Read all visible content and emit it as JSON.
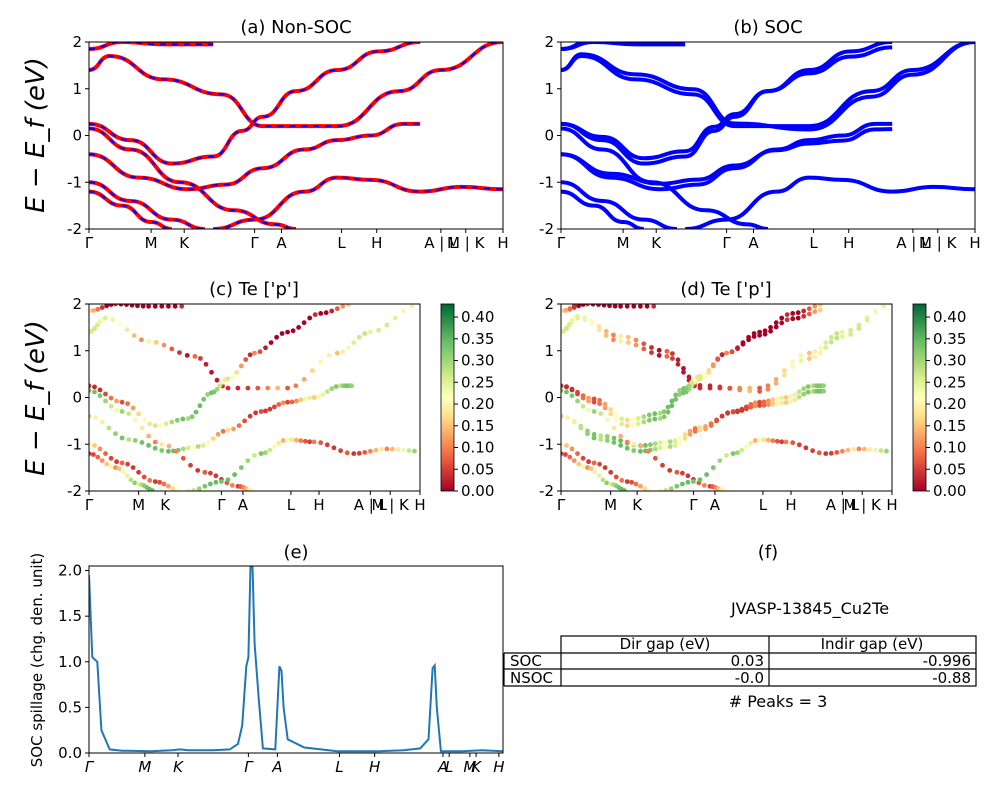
{
  "figure": {
    "panel_a_title": "(a) Non-SOC",
    "panel_b_title": "(b) SOC",
    "panel_c_title": "(c)  Te ['p']",
    "panel_d_title": "(d) Te ['p']",
    "panel_e_title": "(e)",
    "panel_f_title": "(f)",
    "ylabel_energy": "E − E_f (eV)",
    "ylabel_spillage": "SOC spillage (chg. den. unit)"
  },
  "kpath_labels": [
    "Γ",
    "M",
    "K",
    "Γ",
    "A",
    "L",
    "H",
    "A | L",
    "M | K",
    "H"
  ],
  "colors": {
    "nonsoc_red": "#ff0000",
    "soc_blue": "#0000ff",
    "spillage_line": "#1f77b4"
  },
  "chart_data": [
    {
      "type": "line",
      "id": "a",
      "title": "(a) Non-SOC",
      "ylim": [
        -2,
        2
      ],
      "yticks": [
        -2,
        -1,
        0,
        1,
        2
      ],
      "series_note": "red solid and blue dashed bands coincide",
      "bands": [
        [
          [
            0,
            1.4
          ],
          [
            0.05,
            1.7
          ],
          [
            0.18,
            1.2
          ],
          [
            0.32,
            0.88
          ],
          [
            0.42,
            0.2
          ],
          [
            0.6,
            0.2
          ],
          [
            0.75,
            0.95
          ],
          [
            0.85,
            1.4
          ],
          [
            1,
            2
          ]
        ],
        [
          [
            0,
            1.85
          ],
          [
            0.08,
            2
          ],
          [
            0.18,
            1.95
          ],
          [
            0.3,
            1.95
          ]
        ],
        [
          [
            0,
            0.25
          ],
          [
            0.1,
            -0.1
          ],
          [
            0.2,
            -0.6
          ],
          [
            0.3,
            -0.45
          ],
          [
            0.37,
            0.1
          ],
          [
            0.42,
            0.4
          ],
          [
            0.5,
            0.95
          ],
          [
            0.6,
            1.4
          ],
          [
            0.7,
            1.8
          ],
          [
            0.8,
            2
          ]
        ],
        [
          [
            0,
            -0.4
          ],
          [
            0.12,
            -0.9
          ],
          [
            0.24,
            -1.15
          ],
          [
            0.33,
            -1.05
          ],
          [
            0.42,
            -0.7
          ],
          [
            0.52,
            -0.3
          ],
          [
            0.6,
            -0.1
          ],
          [
            0.68,
            0
          ],
          [
            0.76,
            0.25
          ],
          [
            0.8,
            0.25
          ]
        ],
        [
          [
            0,
            0.15
          ],
          [
            0.1,
            -0.3
          ],
          [
            0.22,
            -1
          ],
          [
            0.35,
            -1.6
          ],
          [
            0.45,
            -1.9
          ],
          [
            0.5,
            -2
          ]
        ],
        [
          [
            0,
            -1
          ],
          [
            0.1,
            -1.4
          ],
          [
            0.2,
            -1.8
          ],
          [
            0.28,
            -2
          ]
        ],
        [
          [
            0,
            -1.2
          ],
          [
            0.08,
            -1.5
          ],
          [
            0.15,
            -1.85
          ],
          [
            0.2,
            -2
          ]
        ],
        [
          [
            0.3,
            -2
          ],
          [
            0.4,
            -1.8
          ],
          [
            0.52,
            -1.2
          ],
          [
            0.6,
            -0.9
          ],
          [
            0.68,
            -0.95
          ],
          [
            0.8,
            -1.2
          ],
          [
            0.9,
            -1.1
          ],
          [
            1,
            -1.15
          ]
        ]
      ]
    },
    {
      "type": "line",
      "id": "b",
      "title": "(b) SOC",
      "ylim": [
        -2,
        2
      ],
      "yticks": [
        -2,
        -1,
        0,
        1,
        2
      ]
    },
    {
      "type": "scatter",
      "id": "c",
      "title": "(c)  Te ['p']",
      "ylim": [
        -2,
        2
      ],
      "yticks": [
        -2,
        -1,
        0,
        1,
        2
      ],
      "colorbar": {
        "min": 0.0,
        "max": 0.43,
        "ticks": [
          "0.00",
          "0.05",
          "0.10",
          "0.15",
          "0.20",
          "0.25",
          "0.30",
          "0.35",
          "0.40"
        ]
      }
    },
    {
      "type": "scatter",
      "id": "d",
      "title": "(d) Te ['p']",
      "ylim": [
        -2,
        2
      ],
      "yticks": [
        -2,
        -1,
        0,
        1,
        2
      ],
      "colorbar": {
        "min": 0.0,
        "max": 0.43,
        "ticks": [
          "0.00",
          "0.05",
          "0.10",
          "0.15",
          "0.20",
          "0.25",
          "0.30",
          "0.35",
          "0.40"
        ]
      }
    },
    {
      "type": "line",
      "id": "e",
      "title": "(e)",
      "ylabel": "SOC spillage (chg. den. unit)",
      "ylim": [
        0,
        2.05
      ],
      "yticks": [
        "0.0",
        "0.5",
        "1.0",
        "1.5",
        "2.0"
      ],
      "xticks": [
        "Γ",
        "M",
        "K",
        "Γ",
        "A",
        "L",
        "H",
        "A",
        "L",
        "M",
        "K",
        "H"
      ],
      "x": [
        0,
        0.008,
        0.02,
        0.03,
        0.05,
        0.08,
        0.15,
        0.2,
        0.22,
        0.24,
        0.26,
        0.3,
        0.34,
        0.36,
        0.37,
        0.38,
        0.385,
        0.39,
        0.395,
        0.4,
        0.41,
        0.42,
        0.45,
        0.46,
        0.465,
        0.47,
        0.48,
        0.52,
        0.6,
        0.7,
        0.76,
        0.8,
        0.82,
        0.83,
        0.835,
        0.84,
        0.85,
        0.9,
        0.95,
        1.0
      ],
      "values": [
        1.95,
        1.05,
        1.0,
        0.25,
        0.04,
        0.025,
        0.02,
        0.03,
        0.04,
        0.03,
        0.03,
        0.03,
        0.04,
        0.1,
        0.3,
        0.95,
        1.05,
        2.05,
        2.05,
        1.2,
        0.6,
        0.05,
        0.04,
        0.95,
        0.9,
        0.5,
        0.15,
        0.06,
        0.02,
        0.02,
        0.03,
        0.05,
        0.15,
        0.93,
        0.96,
        0.5,
        0.02,
        0.02,
        0.03,
        0.02
      ]
    },
    {
      "type": "table",
      "id": "f",
      "title": "(f)",
      "material": "JVASP-13845_Cu2Te",
      "columns": [
        "Dir gap (eV)",
        "Indir gap (eV)"
      ],
      "rows": [
        {
          "label": "SOC",
          "dir": "0.03",
          "indir": "-0.996"
        },
        {
          "label": "NSOC",
          "dir": "-0.0",
          "indir": "-0.88"
        }
      ],
      "peaks_text": "# Peaks = 3"
    }
  ]
}
